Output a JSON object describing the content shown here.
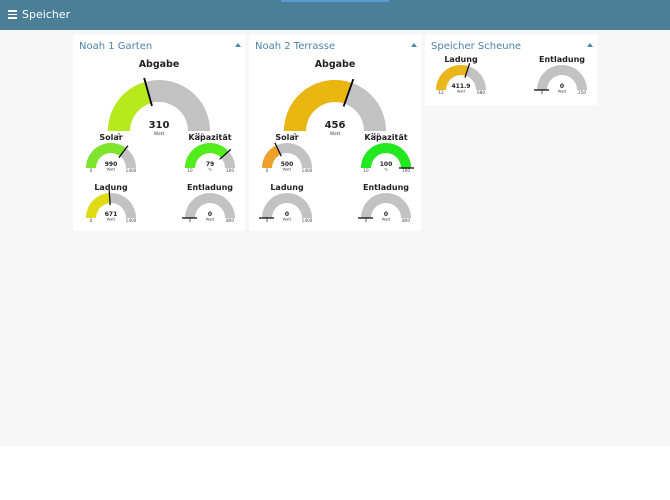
{
  "app": {
    "title": "Speicher"
  },
  "groups": [
    {
      "title": "Noah 1 Garten",
      "gauges": [
        {
          "label": "Abgabe",
          "value": "310",
          "unit": "Watt",
          "min": "0",
          "max": "750",
          "fraction": 0.413,
          "color": "#b6ea1c"
        },
        {
          "label": "Solar",
          "value": "990",
          "unit": "Watt",
          "min": "0",
          "max": "1400",
          "fraction": 0.707,
          "color": "#7ee42c"
        },
        {
          "label": "Kapazität",
          "value": "79",
          "unit": "%",
          "min": "10",
          "max": "100",
          "fraction": 0.767,
          "color": "#53ec1b"
        },
        {
          "label": "Ladung",
          "value": "671",
          "unit": "Watt",
          "min": "0",
          "max": "1400",
          "fraction": 0.479,
          "color": "#e0dc13"
        },
        {
          "label": "Entladung",
          "value": "0",
          "unit": "Watt",
          "min": "0",
          "max": "800",
          "fraction": 0,
          "color": "#c2c2c2"
        }
      ]
    },
    {
      "title": "Noah 2 Terrasse",
      "gauges": [
        {
          "label": "Abgabe",
          "value": "456",
          "unit": "Watt",
          "min": "0",
          "max": "750",
          "fraction": 0.608,
          "color": "#e9b50f"
        },
        {
          "label": "Solar",
          "value": "500",
          "unit": "Watt",
          "min": "0",
          "max": "1400",
          "fraction": 0.357,
          "color": "#eda12b"
        },
        {
          "label": "Kapazität",
          "value": "100",
          "unit": "%",
          "min": "10",
          "max": "100",
          "fraction": 1,
          "color": "#22e81f"
        },
        {
          "label": "Ladung",
          "value": "0",
          "unit": "Watt",
          "min": "0",
          "max": "1400",
          "fraction": 0,
          "color": "#c2c2c2"
        },
        {
          "label": "Entladung",
          "value": "0",
          "unit": "Watt",
          "min": "0",
          "max": "800",
          "fraction": 0,
          "color": "#c2c2c2"
        }
      ]
    },
    {
      "title": "Speicher Scheune",
      "gauges": [
        {
          "label": "Ladung",
          "value": "411.9",
          "unit": "Watt",
          "min": "12",
          "max": "680",
          "fraction": 0.599,
          "color": "#e9b71c"
        },
        {
          "label": "Entladung",
          "value": "0",
          "unit": "Watt",
          "min": "0",
          "max": "250",
          "fraction": 0,
          "color": "#c2c2c2"
        }
      ]
    }
  ],
  "colors": {
    "header": "#4b7f97",
    "title": "#4b84a8",
    "track": "#c2c2c2",
    "needle": "#000000"
  }
}
